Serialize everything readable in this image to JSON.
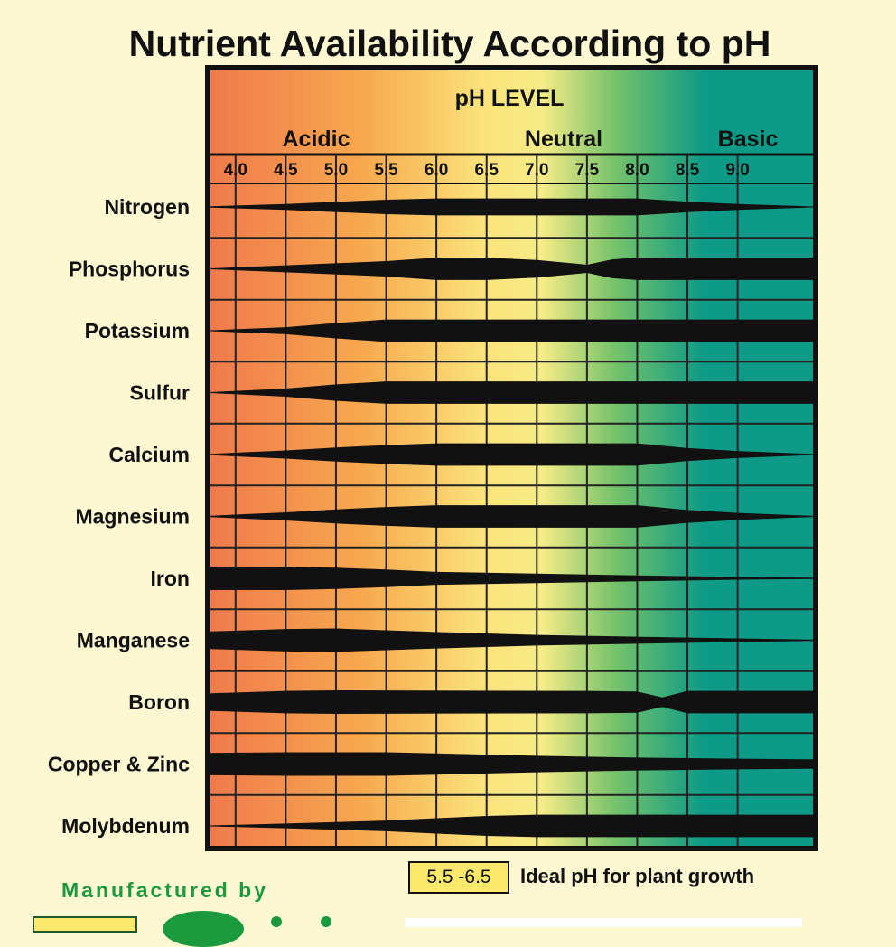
{
  "chart_data": {
    "type": "area",
    "title": "Nutrient Availability According to pH",
    "axis_title": "pH LEVEL",
    "zones": [
      "Acidic",
      "Neutral",
      "Basic"
    ],
    "x": [
      4.0,
      4.5,
      5.0,
      5.5,
      6.0,
      6.5,
      7.0,
      7.5,
      8.0,
      8.5,
      9.0
    ],
    "x_tick_labels": [
      "4.0",
      "4.5",
      "5.0",
      "5.5",
      "6.0",
      "6.5",
      "7.0",
      "7.5",
      "8.0",
      "8.5",
      "9.0"
    ],
    "xlim": [
      3.75,
      9.75
    ],
    "value_scale": "relative band thickness, 0 = unavailable, 1 = fully available",
    "series": [
      {
        "name": "Nitrogen",
        "points": [
          [
            3.75,
            0.06
          ],
          [
            4.5,
            0.25
          ],
          [
            5.5,
            0.62
          ],
          [
            6.0,
            0.72
          ],
          [
            8.0,
            0.72
          ],
          [
            8.5,
            0.45
          ],
          [
            9.0,
            0.25
          ],
          [
            9.75,
            0.04
          ]
        ]
      },
      {
        "name": "Phosphorus",
        "points": [
          [
            3.75,
            0.04
          ],
          [
            4.5,
            0.3
          ],
          [
            5.5,
            0.65
          ],
          [
            6.0,
            0.95
          ],
          [
            6.5,
            0.95
          ],
          [
            7.0,
            0.75
          ],
          [
            7.5,
            0.35
          ],
          [
            7.75,
            0.8
          ],
          [
            8.0,
            0.95
          ],
          [
            9.75,
            0.95
          ]
        ]
      },
      {
        "name": "Potassium",
        "points": [
          [
            3.75,
            0.04
          ],
          [
            4.5,
            0.3
          ],
          [
            5.0,
            0.65
          ],
          [
            5.5,
            0.95
          ],
          [
            9.75,
            0.95
          ]
        ]
      },
      {
        "name": "Sulfur",
        "points": [
          [
            3.75,
            0.04
          ],
          [
            4.5,
            0.35
          ],
          [
            5.0,
            0.7
          ],
          [
            5.5,
            0.95
          ],
          [
            9.75,
            0.95
          ]
        ]
      },
      {
        "name": "Calcium",
        "points": [
          [
            3.75,
            0.06
          ],
          [
            4.5,
            0.35
          ],
          [
            5.0,
            0.6
          ],
          [
            5.5,
            0.8
          ],
          [
            6.0,
            0.95
          ],
          [
            8.0,
            0.95
          ],
          [
            8.5,
            0.55
          ],
          [
            9.0,
            0.3
          ],
          [
            9.75,
            0.05
          ]
        ]
      },
      {
        "name": "Magnesium",
        "points": [
          [
            3.75,
            0.06
          ],
          [
            4.5,
            0.35
          ],
          [
            5.0,
            0.6
          ],
          [
            5.5,
            0.8
          ],
          [
            6.0,
            0.95
          ],
          [
            8.0,
            0.95
          ],
          [
            8.5,
            0.55
          ],
          [
            9.0,
            0.3
          ],
          [
            9.75,
            0.05
          ]
        ]
      },
      {
        "name": "Iron",
        "points": [
          [
            3.75,
            1.0
          ],
          [
            4.5,
            1.0
          ],
          [
            5.0,
            0.9
          ],
          [
            5.5,
            0.75
          ],
          [
            6.0,
            0.55
          ],
          [
            7.0,
            0.4
          ],
          [
            8.0,
            0.25
          ],
          [
            9.0,
            0.12
          ],
          [
            9.75,
            0.06
          ]
        ]
      },
      {
        "name": "Manganese",
        "points": [
          [
            3.75,
            0.75
          ],
          [
            4.5,
            0.95
          ],
          [
            5.0,
            1.0
          ],
          [
            5.5,
            0.85
          ],
          [
            6.0,
            0.7
          ],
          [
            7.0,
            0.45
          ],
          [
            8.0,
            0.3
          ],
          [
            9.0,
            0.15
          ],
          [
            9.75,
            0.06
          ]
        ]
      },
      {
        "name": "Boron",
        "points": [
          [
            3.75,
            0.75
          ],
          [
            4.5,
            0.95
          ],
          [
            5.0,
            1.0
          ],
          [
            7.5,
            0.95
          ],
          [
            8.0,
            0.9
          ],
          [
            8.25,
            0.4
          ],
          [
            8.5,
            0.95
          ],
          [
            9.75,
            0.95
          ]
        ]
      },
      {
        "name": "Copper & Zinc",
        "points": [
          [
            3.75,
            0.95
          ],
          [
            4.5,
            1.0
          ],
          [
            5.5,
            1.0
          ],
          [
            6.0,
            0.9
          ],
          [
            7.0,
            0.7
          ],
          [
            8.0,
            0.55
          ],
          [
            9.0,
            0.45
          ],
          [
            9.75,
            0.4
          ]
        ]
      },
      {
        "name": "Molybdenum",
        "points": [
          [
            3.75,
            0.04
          ],
          [
            4.5,
            0.2
          ],
          [
            5.5,
            0.45
          ],
          [
            6.0,
            0.65
          ],
          [
            6.5,
            0.85
          ],
          [
            7.0,
            0.95
          ],
          [
            9.75,
            0.95
          ]
        ]
      }
    ],
    "ideal_range": [
      5.5,
      6.5
    ],
    "grid": true,
    "legend": {
      "swatch_label": "5.5 -6.5",
      "text": "Ideal pH for plant growth"
    }
  },
  "footer": {
    "manufacturer": "Manufactured by"
  },
  "colors": {
    "acidic": "#ef7a4c",
    "neutral": "#f9e57c",
    "basic": "#0d9a86",
    "band": "#111111",
    "background": "#fdf7d2",
    "brand_green": "#1a9a3c"
  }
}
